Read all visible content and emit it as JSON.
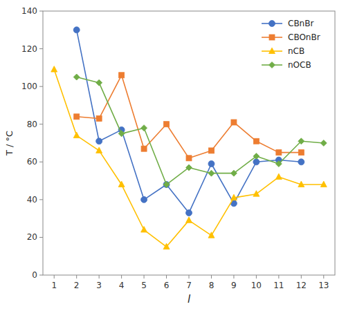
{
  "chart_data": {
    "type": "line",
    "xlabel": "l",
    "ylabel": "T / °C",
    "x": [
      1,
      2,
      3,
      4,
      5,
      6,
      7,
      8,
      9,
      10,
      11,
      12,
      13
    ],
    "series": [
      {
        "name": "CBnBr",
        "color": "#4472c4",
        "marker": "circle",
        "values": [
          null,
          130,
          71,
          77,
          40,
          48,
          33,
          59,
          38,
          60,
          61,
          60,
          null
        ]
      },
      {
        "name": "CBOnBr",
        "color": "#ed7d31",
        "marker": "square",
        "values": [
          null,
          84,
          83,
          106,
          67,
          80,
          62,
          66,
          81,
          71,
          65,
          65,
          null
        ]
      },
      {
        "name": "nCB",
        "color": "#ffc000",
        "marker": "triangle",
        "values": [
          109,
          74,
          66,
          48,
          24,
          15,
          29,
          21,
          41,
          43,
          52,
          48,
          48
        ]
      },
      {
        "name": "nOCB",
        "color": "#70ad47",
        "marker": "diamond",
        "values": [
          null,
          105,
          102,
          75,
          78,
          48,
          57,
          54,
          54,
          63,
          59,
          71,
          70
        ]
      }
    ],
    "xlim": [
      0.5,
      13.5
    ],
    "ylim": [
      0,
      140
    ],
    "xticks": [
      1,
      2,
      3,
      4,
      5,
      6,
      7,
      8,
      9,
      10,
      11,
      12,
      13
    ],
    "yticks": [
      0,
      20,
      40,
      60,
      80,
      100,
      120,
      140
    ],
    "grid": false,
    "legend": "upper right"
  }
}
